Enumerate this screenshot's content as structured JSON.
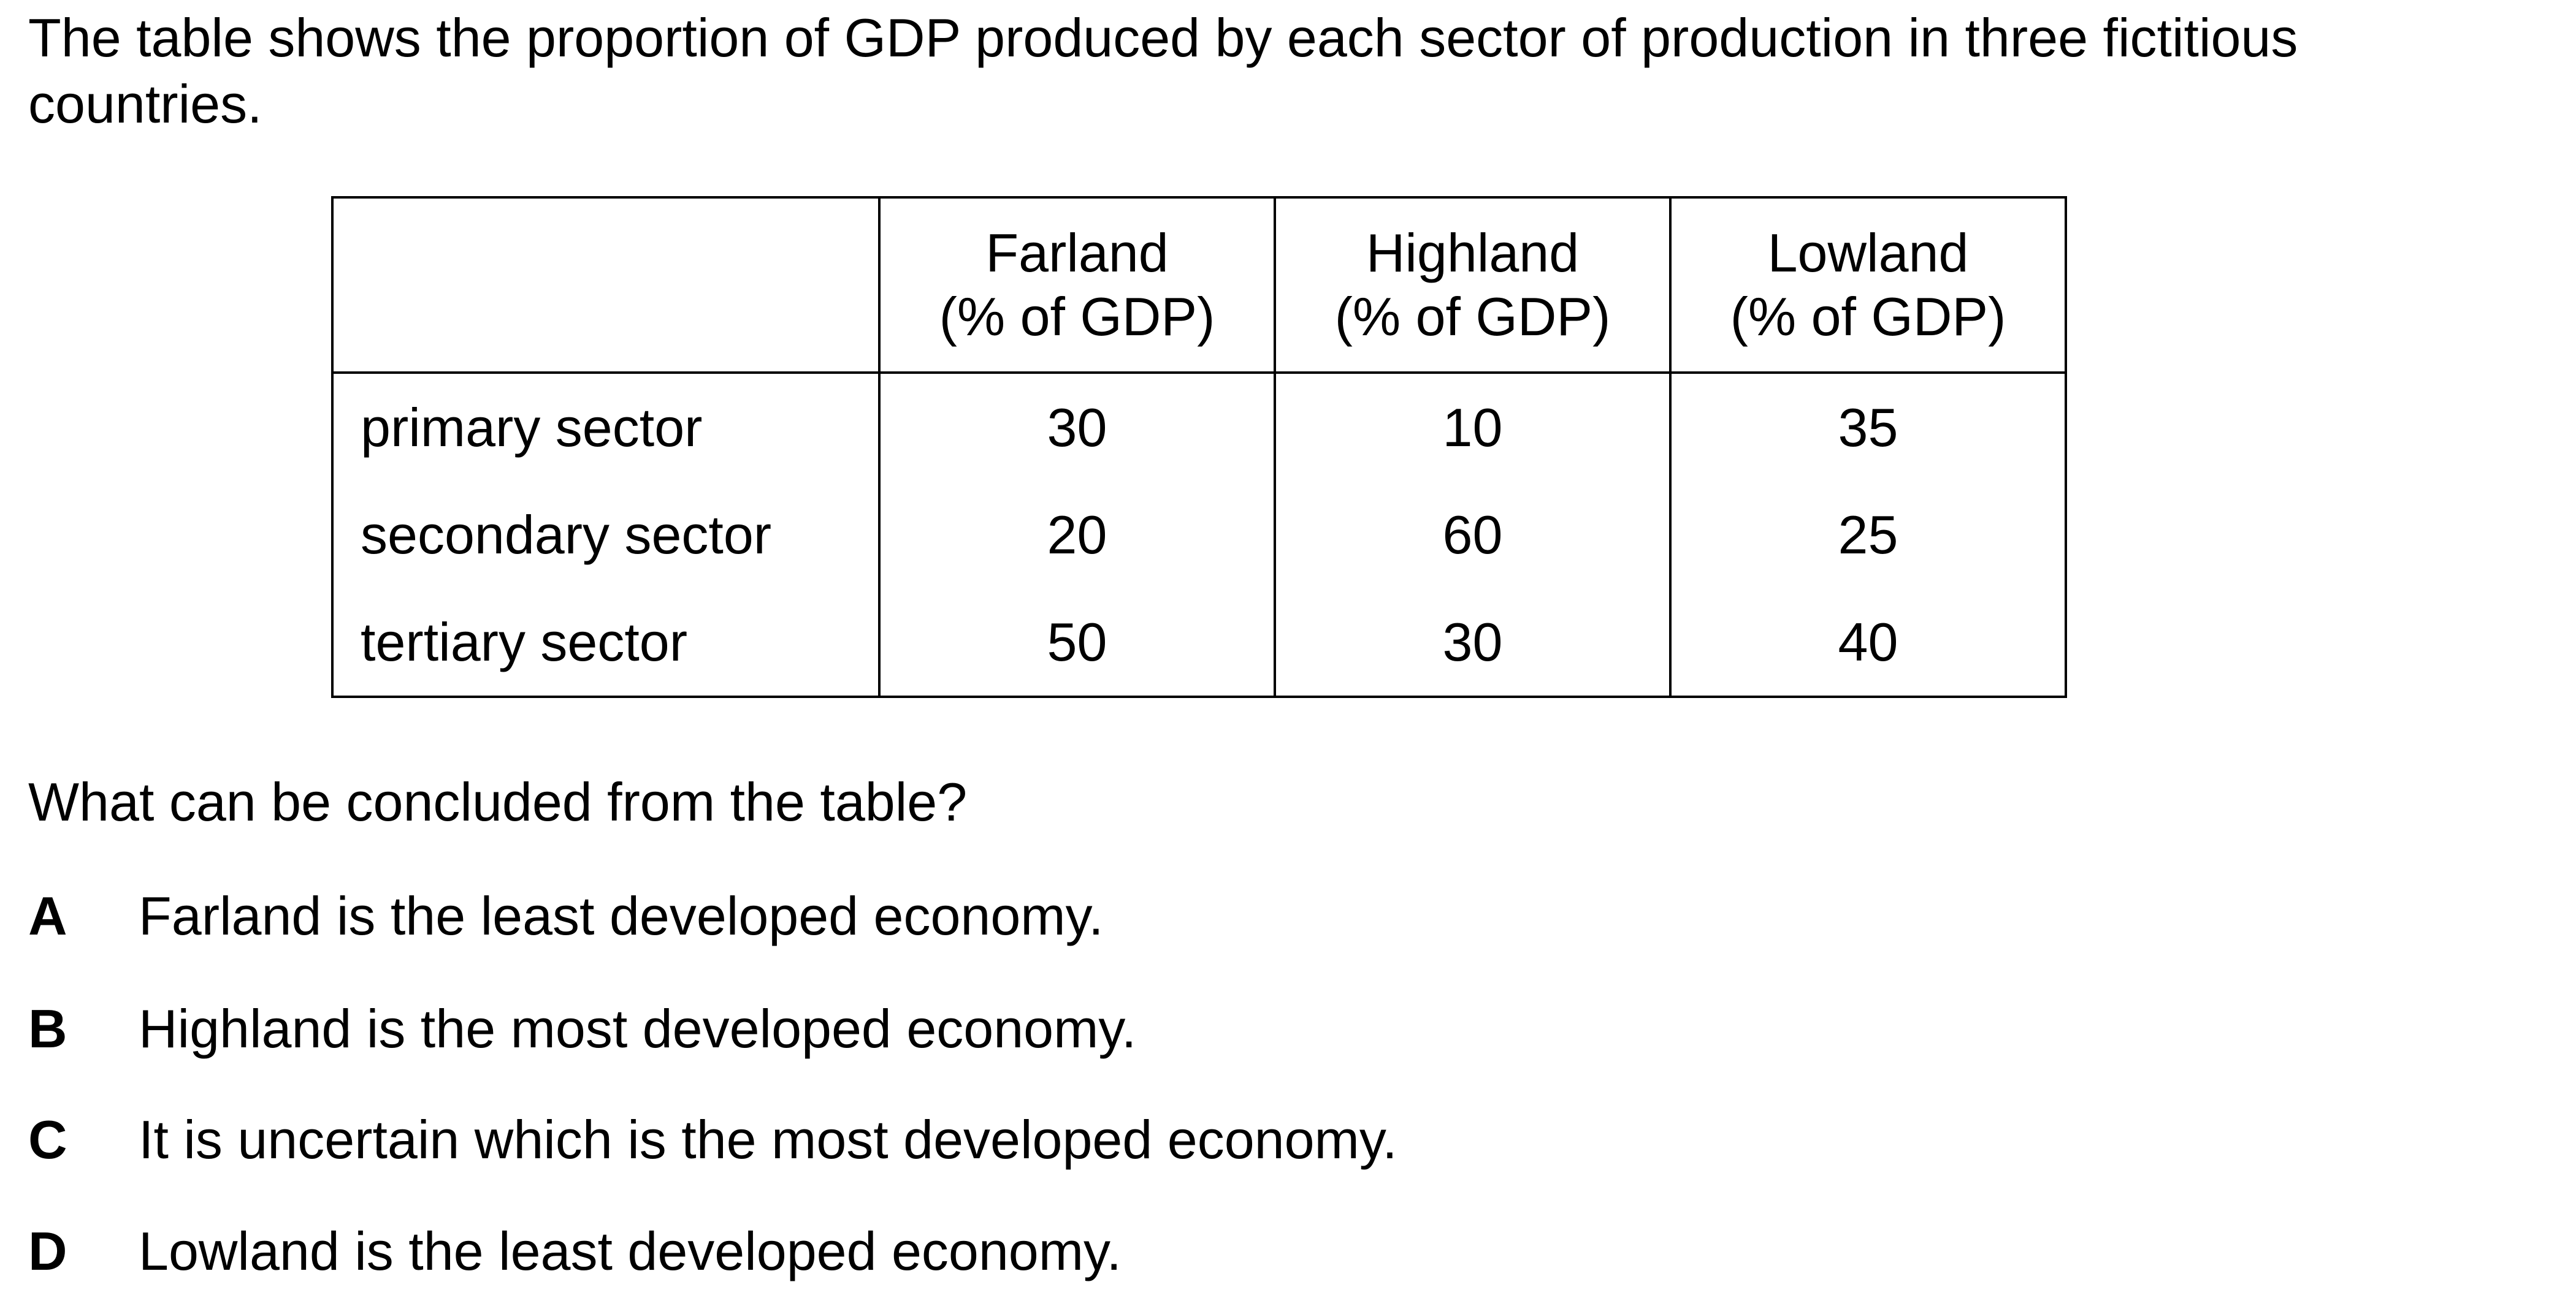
{
  "intro": "The table shows the proportion of GDP produced by each sector of production in three fictitious countries.",
  "table": {
    "headers": [
      {
        "country": "Farland",
        "unit": "(% of GDP)"
      },
      {
        "country": "Highland",
        "unit": "(% of GDP)"
      },
      {
        "country": "Lowland",
        "unit": "(% of GDP)"
      }
    ],
    "rows": [
      {
        "label": "primary sector",
        "values": [
          "30",
          "10",
          "35"
        ]
      },
      {
        "label": "secondary sector",
        "values": [
          "20",
          "60",
          "25"
        ]
      },
      {
        "label": "tertiary sector",
        "values": [
          "50",
          "30",
          "40"
        ]
      }
    ]
  },
  "question": "What can be concluded from the table?",
  "options": [
    {
      "letter": "A",
      "text": "Farland is the least developed economy."
    },
    {
      "letter": "B",
      "text": "Highland is the most developed economy."
    },
    {
      "letter": "C",
      "text": "It is uncertain which is the most developed economy."
    },
    {
      "letter": "D",
      "text": "Lowland is the least developed economy."
    }
  ]
}
